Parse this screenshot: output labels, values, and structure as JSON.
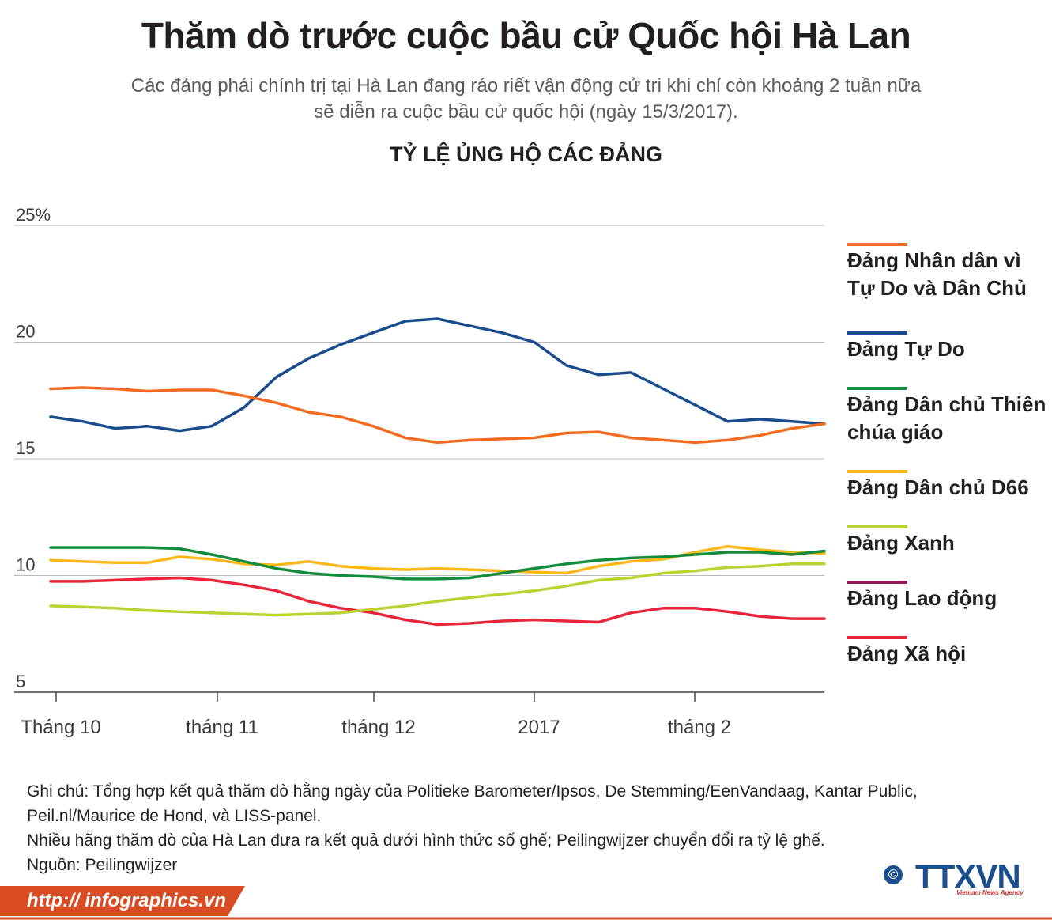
{
  "header": {
    "title": "Thăm dò trước cuộc bầu cử Quốc hội Hà Lan",
    "subtitle_line1": "Các đảng phái chính trị tại Hà Lan đang ráo riết vận động cử tri khi chỉ còn khoảng 2 tuần nữa",
    "subtitle_line2": "sẽ diễn ra cuộc bầu cử quốc hội (ngày 15/3/2017)."
  },
  "chart_data": {
    "type": "line",
    "title": "TỶ LỆ ỦNG HỘ CÁC ĐẢNG",
    "xlabel": "",
    "ylabel": "",
    "ylim": [
      5,
      25
    ],
    "xlim": [
      0,
      24
    ],
    "y_ticks": [
      {
        "value": 25,
        "label": "25%"
      },
      {
        "value": 20,
        "label": "20"
      },
      {
        "value": 15,
        "label": "15"
      },
      {
        "value": 10,
        "label": "10"
      },
      {
        "value": 5,
        "label": "5"
      }
    ],
    "x_ticks": [
      {
        "value": 0,
        "label": "Tháng 10"
      },
      {
        "value": 5,
        "label": "tháng 11"
      },
      {
        "value": 10,
        "label": "tháng 12"
      },
      {
        "value": 15,
        "label": "2017"
      },
      {
        "value": 20,
        "label": "tháng 2"
      }
    ],
    "series": [
      {
        "name": "Đảng Nhân dân vì Tự Do và Dân Chủ",
        "color": "#f26b21",
        "points": [
          [
            0,
            18
          ],
          [
            1,
            18.05
          ],
          [
            2,
            18
          ],
          [
            3,
            17.9
          ],
          [
            4,
            17.95
          ],
          [
            5,
            17.95
          ],
          [
            6,
            17.7
          ],
          [
            7,
            17.4
          ],
          [
            8,
            17
          ],
          [
            9,
            16.8
          ],
          [
            10,
            16.4
          ],
          [
            11,
            15.9
          ],
          [
            12,
            15.7
          ],
          [
            13,
            15.8
          ],
          [
            14,
            15.85
          ],
          [
            15,
            15.9
          ],
          [
            16,
            16.1
          ],
          [
            17,
            16.15
          ],
          [
            18,
            15.9
          ],
          [
            19,
            15.8
          ],
          [
            20,
            15.7
          ],
          [
            21,
            15.8
          ],
          [
            22,
            16
          ],
          [
            23,
            16.3
          ],
          [
            24,
            16.5
          ]
        ]
      },
      {
        "name": "Đảng Tự Do",
        "color": "#1a4b8c",
        "points": [
          [
            0,
            16.8
          ],
          [
            1,
            16.6
          ],
          [
            2,
            16.3
          ],
          [
            3,
            16.4
          ],
          [
            4,
            16.2
          ],
          [
            5,
            16.4
          ],
          [
            6,
            17.2
          ],
          [
            7,
            18.5
          ],
          [
            8,
            19.3
          ],
          [
            9,
            19.9
          ],
          [
            10,
            20.4
          ],
          [
            11,
            20.9
          ],
          [
            12,
            21
          ],
          [
            13,
            20.7
          ],
          [
            14,
            20.4
          ],
          [
            15,
            20
          ],
          [
            16,
            19
          ],
          [
            17,
            18.6
          ],
          [
            18,
            18.7
          ],
          [
            19,
            18
          ],
          [
            20,
            17.3
          ],
          [
            21,
            16.6
          ],
          [
            22,
            16.7
          ],
          [
            23,
            16.6
          ],
          [
            24,
            16.5
          ]
        ]
      },
      {
        "name": "Đảng Dân chủ Thiên chúa giáo",
        "color": "#148c3c",
        "points": [
          [
            0,
            11.2
          ],
          [
            1,
            11.2
          ],
          [
            2,
            11.2
          ],
          [
            3,
            11.2
          ],
          [
            4,
            11.15
          ],
          [
            5,
            10.9
          ],
          [
            6,
            10.6
          ],
          [
            7,
            10.3
          ],
          [
            8,
            10.1
          ],
          [
            9,
            10
          ],
          [
            10,
            9.95
          ],
          [
            11,
            9.85
          ],
          [
            12,
            9.85
          ],
          [
            13,
            9.9
          ],
          [
            14,
            10.1
          ],
          [
            15,
            10.3
          ],
          [
            16,
            10.5
          ],
          [
            17,
            10.65
          ],
          [
            18,
            10.75
          ],
          [
            19,
            10.8
          ],
          [
            20,
            10.9
          ],
          [
            21,
            11
          ],
          [
            22,
            11
          ],
          [
            23,
            10.9
          ],
          [
            24,
            11.05
          ]
        ]
      },
      {
        "name": "Đảng Dân chủ D66",
        "color": "#fbb81b",
        "points": [
          [
            0,
            10.65
          ],
          [
            1,
            10.6
          ],
          [
            2,
            10.55
          ],
          [
            3,
            10.55
          ],
          [
            4,
            10.8
          ],
          [
            5,
            10.7
          ],
          [
            6,
            10.5
          ],
          [
            7,
            10.45
          ],
          [
            8,
            10.6
          ],
          [
            9,
            10.4
          ],
          [
            10,
            10.3
          ],
          [
            11,
            10.25
          ],
          [
            12,
            10.3
          ],
          [
            13,
            10.25
          ],
          [
            14,
            10.2
          ],
          [
            15,
            10.15
          ],
          [
            16,
            10.1
          ],
          [
            17,
            10.4
          ],
          [
            18,
            10.6
          ],
          [
            19,
            10.7
          ],
          [
            20,
            11
          ],
          [
            21,
            11.25
          ],
          [
            22,
            11.1
          ],
          [
            23,
            11
          ],
          [
            24,
            10.95
          ]
        ]
      },
      {
        "name": "Đảng Xanh",
        "color": "#b8d432",
        "points": [
          [
            0,
            8.7
          ],
          [
            1,
            8.65
          ],
          [
            2,
            8.6
          ],
          [
            3,
            8.5
          ],
          [
            4,
            8.45
          ],
          [
            5,
            8.4
          ],
          [
            6,
            8.35
          ],
          [
            7,
            8.3
          ],
          [
            8,
            8.35
          ],
          [
            9,
            8.4
          ],
          [
            10,
            8.55
          ],
          [
            11,
            8.7
          ],
          [
            12,
            8.9
          ],
          [
            13,
            9.05
          ],
          [
            14,
            9.2
          ],
          [
            15,
            9.35
          ],
          [
            16,
            9.55
          ],
          [
            17,
            9.8
          ],
          [
            18,
            9.9
          ],
          [
            19,
            10.1
          ],
          [
            20,
            10.2
          ],
          [
            21,
            10.35
          ],
          [
            22,
            10.4
          ],
          [
            23,
            10.5
          ],
          [
            24,
            10.5
          ]
        ]
      },
      {
        "name": "Đảng Lao động",
        "color": "#8c1c5a",
        "points": []
      },
      {
        "name": "Đảng Xã hội",
        "color": "#e8253a",
        "points": [
          [
            0,
            9.75
          ],
          [
            1,
            9.75
          ],
          [
            2,
            9.8
          ],
          [
            3,
            9.85
          ],
          [
            4,
            9.9
          ],
          [
            5,
            9.8
          ],
          [
            6,
            9.6
          ],
          [
            7,
            9.35
          ],
          [
            8,
            8.9
          ],
          [
            9,
            8.6
          ],
          [
            10,
            8.4
          ],
          [
            11,
            8.1
          ],
          [
            12,
            7.9
          ],
          [
            13,
            7.95
          ],
          [
            14,
            8.05
          ],
          [
            15,
            8.1
          ],
          [
            16,
            8.05
          ],
          [
            17,
            8
          ],
          [
            18,
            8.4
          ],
          [
            19,
            8.6
          ],
          [
            20,
            8.6
          ],
          [
            21,
            8.45
          ],
          [
            22,
            8.25
          ],
          [
            23,
            8.15
          ],
          [
            24,
            8.15
          ]
        ]
      }
    ]
  },
  "notes": {
    "line1": "Ghi chú: Tổng hợp kết quả thăm dò hằng ngày của Politieke Barometer/Ipsos, De Stemming/EenVandaag, Kantar Public,",
    "line2": "Peil.nl/Maurice de Hond, và LISS-panel.",
    "line3": "Nhiều hãng thăm dò của Hà Lan đưa ra kết quả dưới hình thức số ghế; Peilingwijzer chuyển đổi ra tỷ lệ ghế.",
    "source": "Nguồn: Peilingwijzer"
  },
  "footer": {
    "url": "http:// infographics.vn",
    "logo_copyright": "©",
    "logo_text": "TTXVN",
    "logo_subtext": "Vietnam News Agency",
    "accent_color": "#d94b23"
  }
}
